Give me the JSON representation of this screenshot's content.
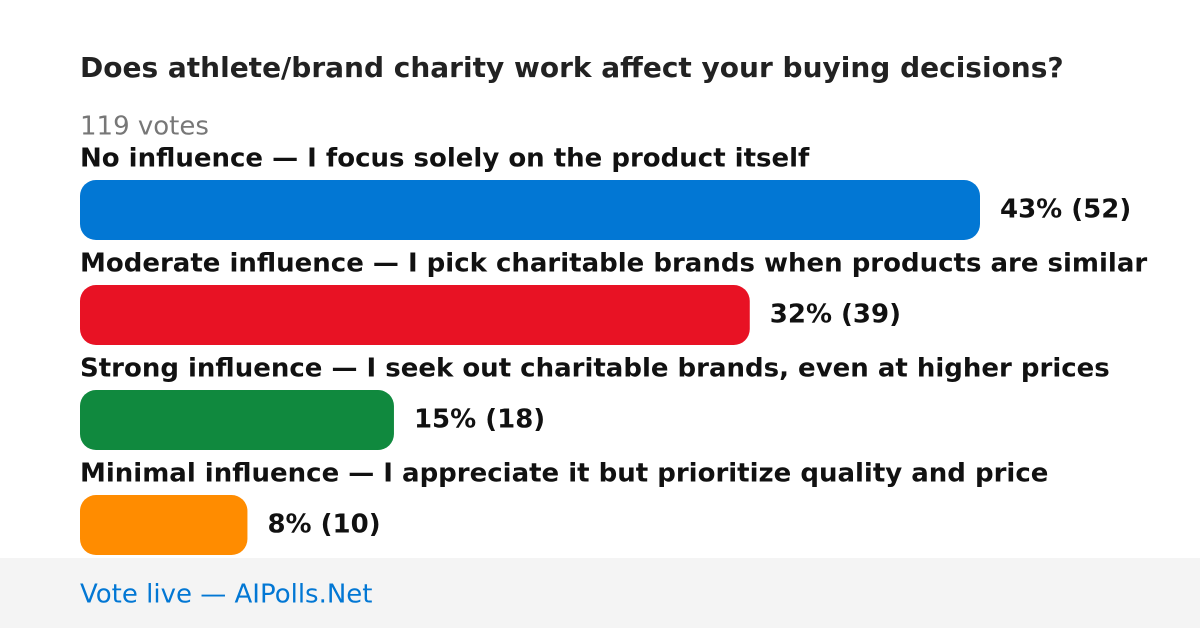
{
  "chart_data": {
    "type": "bar",
    "orientation": "horizontal",
    "title": "Does athlete/brand charity work affect your buying decisions?",
    "subtitle": "119 votes",
    "categories": [
      "No influence — I focus solely on the product itself",
      "Moderate influence — I pick charitable brands when products are similar",
      "Strong influence — I seek out charitable brands, even at higher prices",
      "Minimal influence — I appreciate it but prioritize quality and price"
    ],
    "values": [
      43,
      32,
      15,
      8
    ],
    "value_labels": [
      "43% (52)",
      "32% (39)",
      "15% (18)",
      "8% (10)"
    ],
    "colors": [
      "#0277d4",
      "#e81224",
      "#10893e",
      "#ff8c00"
    ],
    "footer": "Vote live — AIPolls.Net"
  }
}
